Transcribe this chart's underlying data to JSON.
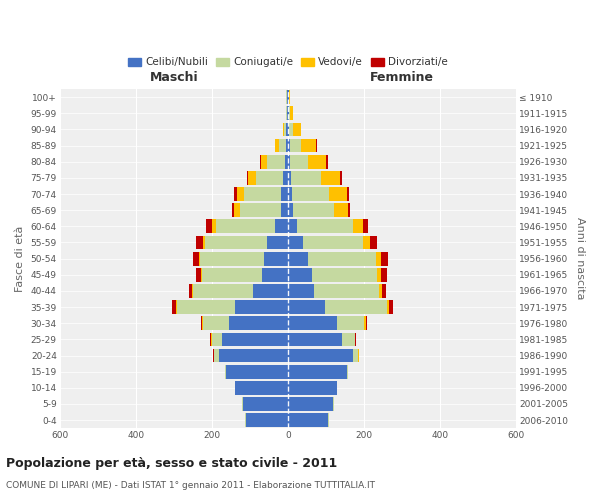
{
  "age_groups": [
    "0-4",
    "5-9",
    "10-14",
    "15-19",
    "20-24",
    "25-29",
    "30-34",
    "35-39",
    "40-44",
    "45-49",
    "50-54",
    "55-59",
    "60-64",
    "65-69",
    "70-74",
    "75-79",
    "80-84",
    "85-89",
    "90-94",
    "95-99",
    "100+"
  ],
  "birth_years": [
    "2006-2010",
    "2001-2005",
    "1996-2000",
    "1991-1995",
    "1986-1990",
    "1981-1985",
    "1976-1980",
    "1971-1975",
    "1966-1970",
    "1961-1965",
    "1956-1960",
    "1951-1955",
    "1946-1950",
    "1941-1945",
    "1936-1940",
    "1931-1935",
    "1926-1930",
    "1921-1925",
    "1916-1920",
    "1911-1915",
    "≤ 1910"
  ],
  "maschi": {
    "celibi": [
      110,
      118,
      138,
      163,
      182,
      172,
      155,
      140,
      92,
      68,
      63,
      55,
      35,
      18,
      18,
      12,
      8,
      5,
      4,
      2,
      2
    ],
    "coniugati": [
      2,
      2,
      2,
      3,
      13,
      28,
      68,
      152,
      158,
      158,
      168,
      163,
      155,
      108,
      97,
      72,
      48,
      18,
      7,
      3,
      2
    ],
    "vedovi": [
      0,
      0,
      0,
      0,
      0,
      2,
      2,
      2,
      2,
      3,
      4,
      5,
      10,
      15,
      20,
      20,
      15,
      10,
      2,
      0,
      0
    ],
    "divorziati": [
      0,
      0,
      0,
      0,
      2,
      2,
      4,
      10,
      8,
      12,
      15,
      18,
      15,
      5,
      8,
      4,
      2,
      0,
      0,
      0,
      0
    ]
  },
  "femmine": {
    "nubili": [
      105,
      118,
      128,
      155,
      172,
      143,
      128,
      98,
      68,
      63,
      53,
      40,
      23,
      12,
      10,
      8,
      5,
      5,
      4,
      2,
      2
    ],
    "coniugate": [
      2,
      2,
      2,
      3,
      12,
      32,
      73,
      162,
      172,
      172,
      178,
      158,
      148,
      108,
      97,
      78,
      48,
      28,
      8,
      3,
      2
    ],
    "vedove": [
      0,
      0,
      0,
      0,
      2,
      2,
      3,
      5,
      8,
      10,
      13,
      18,
      25,
      38,
      48,
      52,
      48,
      42,
      22,
      8,
      2
    ],
    "divorziate": [
      0,
      0,
      0,
      0,
      2,
      3,
      4,
      12,
      10,
      16,
      18,
      18,
      14,
      4,
      5,
      5,
      5,
      2,
      0,
      0,
      0
    ]
  },
  "xlim": 600,
  "xtick_values": [
    -600,
    -400,
    -200,
    0,
    200,
    400,
    600
  ],
  "colors": {
    "celibi": "#4472c4",
    "coniugati": "#c5d9a0",
    "vedovi": "#ffc000",
    "divorziati": "#c00000"
  },
  "title": "Popolazione per età, sesso e stato civile - 2011",
  "subtitle": "COMUNE DI LIPARI (ME) - Dati ISTAT 1° gennaio 2011 - Elaborazione TUTTITALIA.IT",
  "ylabel_left": "Fasce di età",
  "ylabel_right": "Anni di nascita",
  "label_maschi": "Maschi",
  "label_femmine": "Femmine",
  "legend_labels": [
    "Celibi/Nubili",
    "Coniugati/e",
    "Vedovi/e",
    "Divorziati/e"
  ],
  "fig_bg": "#ffffff",
  "ax_bg": "#efefef",
  "grid_color": "#ffffff",
  "maschi_label_color": "#333333",
  "femmine_label_color": "#333333",
  "bar_height": 0.85
}
